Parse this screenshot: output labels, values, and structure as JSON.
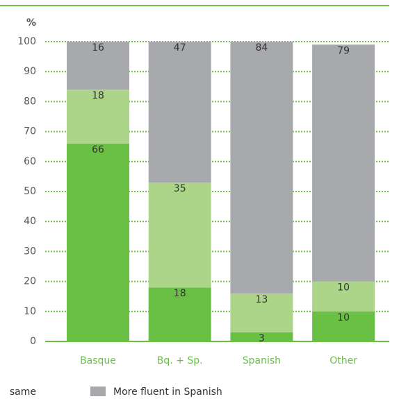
{
  "chart_data": {
    "type": "stacked_bar",
    "y_label": "%",
    "categories": [
      "Basque",
      "Bq. + Sp.",
      "Spanish",
      "Other"
    ],
    "series": [
      {
        "color": "#6abf45",
        "values": [
          66,
          18,
          3,
          10
        ]
      },
      {
        "name": "same",
        "color": "#acd58a",
        "values": [
          18,
          35,
          13,
          10
        ]
      },
      {
        "name": "More fluent in Spanish",
        "color": "#a7a9ac",
        "values": [
          16,
          47,
          84,
          79
        ]
      }
    ],
    "ylim": [
      0,
      100
    ],
    "yticks": [
      0,
      10,
      20,
      30,
      40,
      50,
      60,
      70,
      80,
      90,
      100
    ],
    "grid": true
  }
}
